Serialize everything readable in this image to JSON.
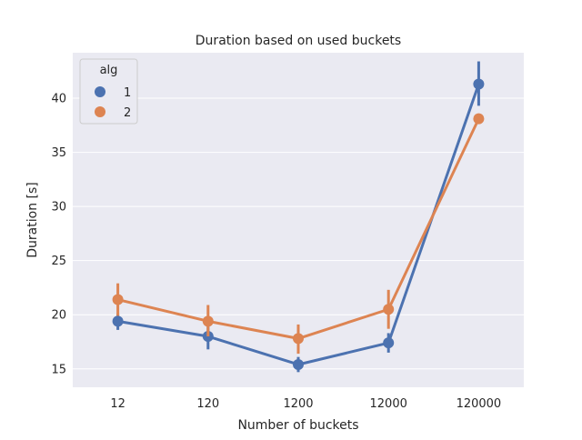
{
  "chart_data": {
    "type": "line",
    "title": "Duration based on used buckets",
    "xlabel": "Number of buckets",
    "ylabel": "Duration [s]",
    "categories": [
      "12",
      "120",
      "1200",
      "12000",
      "120000"
    ],
    "ylim": [
      13.3,
      44.2
    ],
    "yticks": [
      15,
      20,
      25,
      30,
      35,
      40
    ],
    "grid": true,
    "legend": {
      "title": "alg",
      "placement": "top-left"
    },
    "series": [
      {
        "name": "1",
        "color": "#4c72b0",
        "values": [
          19.4,
          18.0,
          15.4,
          17.4,
          41.3
        ],
        "ci": [
          [
            18.6,
            20.1
          ],
          [
            16.8,
            19.1
          ],
          [
            14.7,
            16.1
          ],
          [
            16.5,
            18.3
          ],
          [
            39.3,
            43.4
          ]
        ]
      },
      {
        "name": "2",
        "color": "#dd8452",
        "values": [
          21.4,
          19.4,
          17.8,
          20.5,
          38.1
        ],
        "ci": [
          [
            19.9,
            22.9
          ],
          [
            18.0,
            20.9
          ],
          [
            16.4,
            19.1
          ],
          [
            18.7,
            22.3
          ],
          [
            38.1,
            38.1
          ]
        ]
      }
    ]
  }
}
